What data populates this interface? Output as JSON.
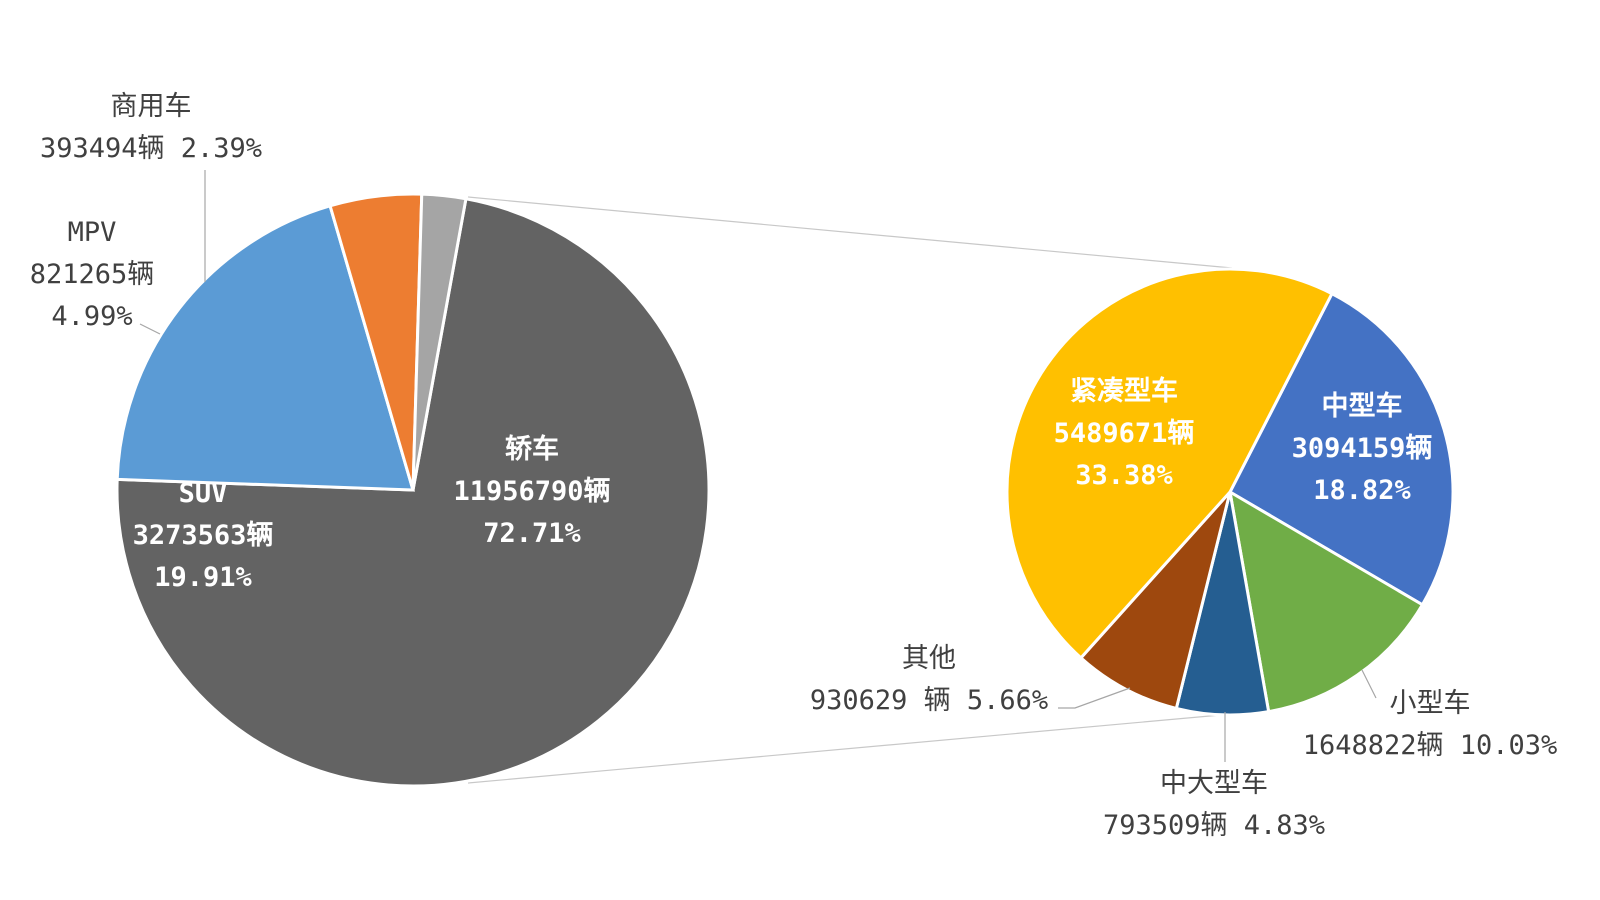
{
  "chart_data": [
    {
      "type": "pie",
      "title": "",
      "slices": [
        {
          "key": "jiaoche",
          "name": "轿车",
          "count": "11956790辆",
          "percent": "72.71%",
          "value": 72.71,
          "color": "#636363"
        },
        {
          "key": "suv",
          "name": "SUV",
          "count": "3273563辆",
          "percent": "19.91%",
          "value": 19.91,
          "color": "#5b9bd5"
        },
        {
          "key": "mpv",
          "name": "MPV",
          "count": "821265辆",
          "percent": "4.99%",
          "value": 4.99,
          "color": "#ed7d31"
        },
        {
          "key": "shangyong",
          "name": "商用车",
          "count": "393494辆",
          "percent": "2.39%",
          "value": 2.39,
          "color": "#a5a5a5"
        }
      ]
    },
    {
      "type": "pie",
      "title": "",
      "slices": [
        {
          "key": "zhongxing",
          "name": "中型车",
          "count": "3094159辆",
          "percent": "18.82%",
          "value": 18.82,
          "color": "#4472c4"
        },
        {
          "key": "xiaoxing",
          "name": "小型车",
          "count": "1648822辆",
          "percent": "10.03%",
          "value": 10.03,
          "color": "#70ad47"
        },
        {
          "key": "zhongda",
          "name": "中大型车",
          "count": "793509辆",
          "percent": "4.83%",
          "value": 4.83,
          "color": "#255e91"
        },
        {
          "key": "qita",
          "name": "其他",
          "count": "930629 辆",
          "percent": "5.66%",
          "value": 5.66,
          "color": "#9e480e"
        },
        {
          "key": "jincou",
          "name": "紧凑型车",
          "count": "5489671辆",
          "percent": "33.38%",
          "value": 33.38,
          "color": "#ffc000"
        }
      ]
    }
  ]
}
